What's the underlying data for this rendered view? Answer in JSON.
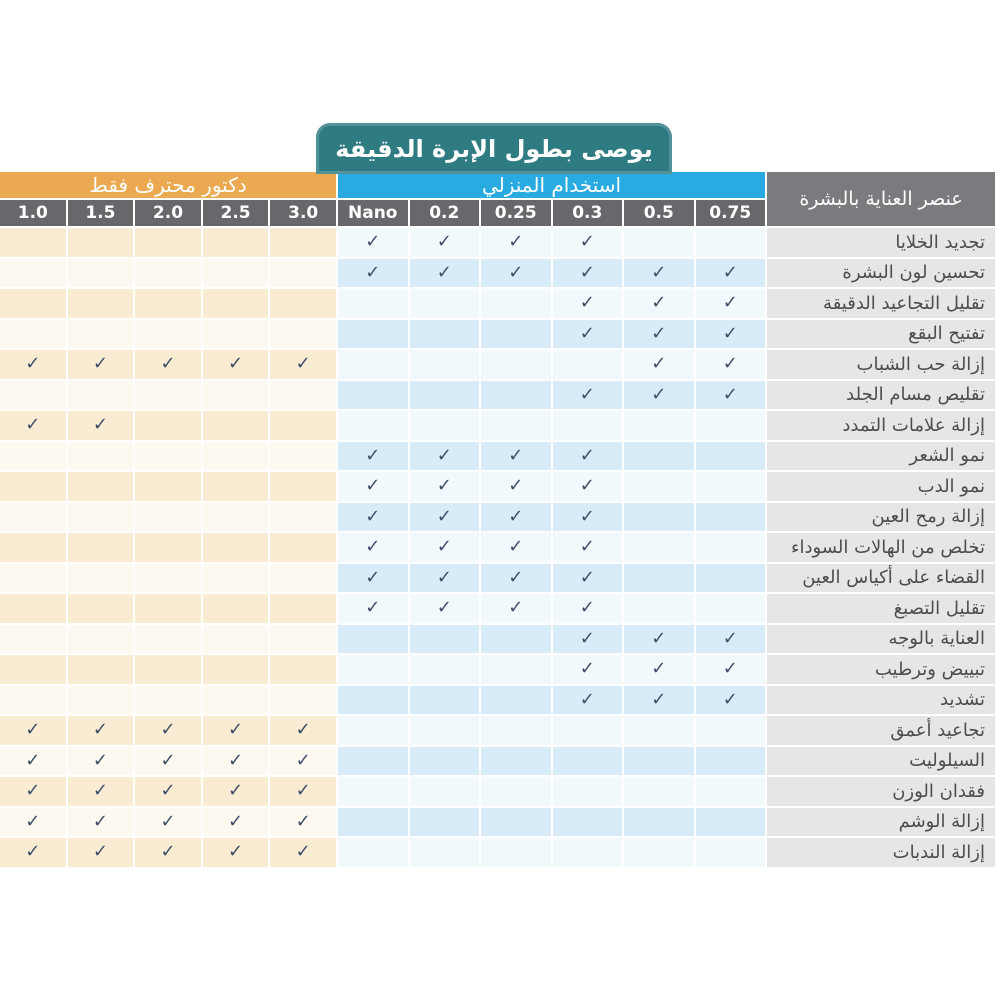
{
  "title": "يوصى بطول الإبرة الدقيقة",
  "colors": {
    "title_badge": "#2E7B82",
    "doctor_group": "#EBAA52",
    "home_group": "#29ABE2",
    "column_header": "#67686B",
    "row_header": "#7A7B7E",
    "label_cell": "#E5E6E8",
    "peach_row_tint": "#FAEBD3",
    "peach_row_light": "#FEF9F0",
    "blue_row_tint": "#D7ECF8",
    "blue_row_light": "#F1F9FD",
    "check": "#3F4E68"
  },
  "chart_data": {
    "type": "table",
    "title": "يوصى بطول الإبرة الدقيقة",
    "row_header": "عنصر العناية بالبشرة",
    "check_glyph": "✓",
    "column_groups": [
      {
        "id": "doctor",
        "label": "دكتور محترف فقط",
        "columns": [
          "1.0",
          "1.5",
          "2.0",
          "2.5",
          "3.0"
        ]
      },
      {
        "id": "home",
        "label": "استخدام المنزلي",
        "columns": [
          "Nano",
          "0.2",
          "0.25",
          "0.3",
          "0.5",
          "0.75"
        ]
      }
    ],
    "rows": [
      {
        "label": "تجديد الخلايا",
        "doctor": [
          0,
          0,
          0,
          0,
          0
        ],
        "home": [
          1,
          1,
          1,
          1,
          0,
          0
        ]
      },
      {
        "label": "تحسين لون البشرة",
        "doctor": [
          0,
          0,
          0,
          0,
          0
        ],
        "home": [
          1,
          1,
          1,
          1,
          1,
          1
        ]
      },
      {
        "label": "تقليل التجاعيد الدقيقة",
        "doctor": [
          0,
          0,
          0,
          0,
          0
        ],
        "home": [
          0,
          0,
          0,
          1,
          1,
          1
        ]
      },
      {
        "label": "تفتيح البقع",
        "doctor": [
          0,
          0,
          0,
          0,
          0
        ],
        "home": [
          0,
          0,
          0,
          1,
          1,
          1
        ]
      },
      {
        "label": "إزالة حب الشباب",
        "doctor": [
          1,
          1,
          1,
          1,
          1
        ],
        "home": [
          0,
          0,
          0,
          0,
          1,
          1
        ]
      },
      {
        "label": "تقليص مسام الجلد",
        "doctor": [
          0,
          0,
          0,
          0,
          0
        ],
        "home": [
          0,
          0,
          0,
          1,
          1,
          1
        ]
      },
      {
        "label": "إزالة علامات التمدد",
        "doctor": [
          1,
          1,
          0,
          0,
          0
        ],
        "home": [
          0,
          0,
          0,
          0,
          0,
          0
        ]
      },
      {
        "label": "نمو الشعر",
        "doctor": [
          0,
          0,
          0,
          0,
          0
        ],
        "home": [
          1,
          1,
          1,
          1,
          0,
          0
        ]
      },
      {
        "label": "نمو الدب",
        "doctor": [
          0,
          0,
          0,
          0,
          0
        ],
        "home": [
          1,
          1,
          1,
          1,
          0,
          0
        ]
      },
      {
        "label": "إزالة رمح العين",
        "doctor": [
          0,
          0,
          0,
          0,
          0
        ],
        "home": [
          1,
          1,
          1,
          1,
          0,
          0
        ]
      },
      {
        "label": "تخلص من الهالات السوداء",
        "doctor": [
          0,
          0,
          0,
          0,
          0
        ],
        "home": [
          1,
          1,
          1,
          1,
          0,
          0
        ]
      },
      {
        "label": "القضاء على أكياس العين",
        "doctor": [
          0,
          0,
          0,
          0,
          0
        ],
        "home": [
          1,
          1,
          1,
          1,
          0,
          0
        ]
      },
      {
        "label": "تقليل التصبغ",
        "doctor": [
          0,
          0,
          0,
          0,
          0
        ],
        "home": [
          1,
          1,
          1,
          1,
          0,
          0
        ]
      },
      {
        "label": "العناية بالوجه",
        "doctor": [
          0,
          0,
          0,
          0,
          0
        ],
        "home": [
          0,
          0,
          0,
          1,
          1,
          1
        ]
      },
      {
        "label": "تبييض وترطيب",
        "doctor": [
          0,
          0,
          0,
          0,
          0
        ],
        "home": [
          0,
          0,
          0,
          1,
          1,
          1
        ]
      },
      {
        "label": "تشديد",
        "doctor": [
          0,
          0,
          0,
          0,
          0
        ],
        "home": [
          0,
          0,
          0,
          1,
          1,
          1
        ]
      },
      {
        "label": "تجاعيد أعمق",
        "doctor": [
          1,
          1,
          1,
          1,
          1
        ],
        "home": [
          0,
          0,
          0,
          0,
          0,
          0
        ]
      },
      {
        "label": "السيلوليت",
        "doctor": [
          1,
          1,
          1,
          1,
          1
        ],
        "home": [
          0,
          0,
          0,
          0,
          0,
          0
        ]
      },
      {
        "label": "فقدان الوزن",
        "doctor": [
          1,
          1,
          1,
          1,
          1
        ],
        "home": [
          0,
          0,
          0,
          0,
          0,
          0
        ]
      },
      {
        "label": "إزالة الوشم",
        "doctor": [
          1,
          1,
          1,
          1,
          1
        ],
        "home": [
          0,
          0,
          0,
          0,
          0,
          0
        ]
      },
      {
        "label": "إزالة الندبات",
        "doctor": [
          1,
          1,
          1,
          1,
          1
        ],
        "home": [
          0,
          0,
          0,
          0,
          0,
          0
        ]
      }
    ]
  }
}
